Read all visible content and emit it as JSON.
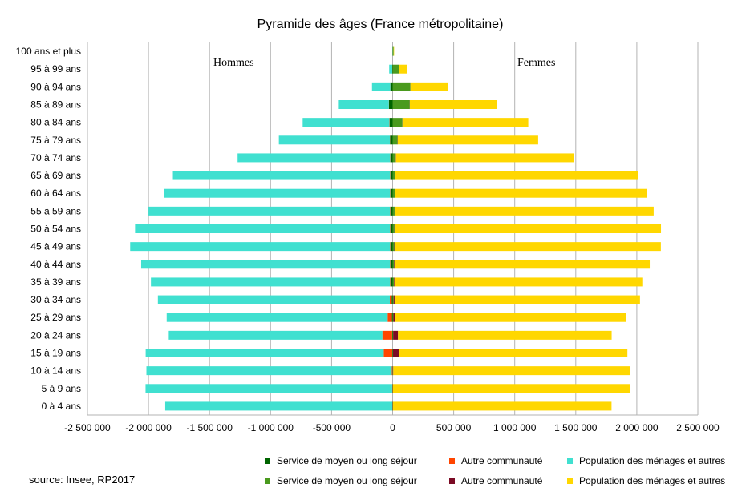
{
  "chart_data": {
    "type": "bar",
    "orientation": "horizontal",
    "title": "Pyramide des âges (France métropolitaine)",
    "source": "source: Insee, RP2017",
    "left_label": "Hommes",
    "right_label": "Femmes",
    "xlim": [
      -2500000,
      2500000
    ],
    "xticks": [
      -2500000,
      -2000000,
      -1500000,
      -1000000,
      -500000,
      0,
      500000,
      1000000,
      1500000,
      2000000,
      2500000
    ],
    "xtick_labels": [
      "-2 500 000",
      "-2 000 000",
      "-1 500 000",
      "-1 000 000",
      "-500 000",
      "0",
      "500 000",
      "1 000 000",
      "1 500 000",
      "2 000 000",
      "2 500 000"
    ],
    "grid": true,
    "categories": [
      "0 à 4 ans",
      "5 à 9 ans",
      "10 à 14 ans",
      "15 à 19 ans",
      "20 à 24 ans",
      "25 à 29 ans",
      "30 à 34 ans",
      "35 à 39 ans",
      "40 à 44 ans",
      "45 à 49 ans",
      "50 à 54 ans",
      "55 à 59 ans",
      "60 à 64 ans",
      "65 à 69 ans",
      "70 à 74 ans",
      "75 à 79 ans",
      "80 à 84 ans",
      "85 à 89 ans",
      "90 à 94 ans",
      "95 à 99 ans",
      "100 ans et plus"
    ],
    "series": [
      {
        "name": "Service de moyen ou long séjour",
        "side": "Hommes",
        "color": "#006400",
        "values": [
          -2000,
          -2000,
          -2000,
          -3000,
          -4000,
          -6000,
          -8000,
          -10000,
          -12000,
          -14000,
          -15000,
          -16000,
          -17000,
          -17000,
          -18000,
          -20000,
          -25000,
          -30000,
          -18000,
          -3000,
          -500
        ]
      },
      {
        "name": "Autre communauté",
        "side": "Hommes",
        "color": "#ff4500",
        "values": [
          -1000,
          -2000,
          -5000,
          -70000,
          -80000,
          -35000,
          -15000,
          -10000,
          -8000,
          -6000,
          -5000,
          -4000,
          -3000,
          -3000,
          -2000,
          -2000,
          -2000,
          -1000,
          -1000,
          -200,
          0
        ]
      },
      {
        "name": "Population des ménages et autres",
        "side": "Hommes",
        "color": "#40e0d0",
        "values": [
          -1860000,
          -2020000,
          -2010000,
          -1950000,
          -1750000,
          -1810000,
          -1900000,
          -1960000,
          -2040000,
          -2130000,
          -2090000,
          -1980000,
          -1850000,
          -1780000,
          -1250000,
          -910000,
          -710000,
          -410000,
          -150000,
          -25000,
          -1000
        ]
      },
      {
        "name": "Service de moyen ou long séjour",
        "side": "Femmes",
        "color": "#4a9a1e",
        "values": [
          2000,
          2000,
          2000,
          3000,
          4000,
          6000,
          8000,
          10000,
          12000,
          14000,
          15000,
          16000,
          18000,
          20000,
          25000,
          40000,
          80000,
          140000,
          145000,
          55000,
          8000
        ]
      },
      {
        "name": "Autre communauté",
        "side": "Femmes",
        "color": "#7b0a24",
        "values": [
          1000,
          1000,
          3000,
          50000,
          40000,
          15000,
          8000,
          5000,
          4000,
          3000,
          3000,
          2000,
          2000,
          2000,
          2000,
          2000,
          1000,
          1000,
          1000,
          0,
          0
        ]
      },
      {
        "name": "Population des ménages et autres",
        "side": "Femmes",
        "color": "#ffd700",
        "values": [
          1790000,
          1940000,
          1940000,
          1870000,
          1750000,
          1890000,
          2010000,
          2030000,
          2090000,
          2180000,
          2180000,
          2120000,
          2060000,
          1990000,
          1460000,
          1150000,
          1030000,
          710000,
          310000,
          60000,
          4000
        ]
      }
    ],
    "legend": {
      "placement": "bottom-right",
      "rows": [
        [
          {
            "label": "Service de moyen ou long séjour",
            "color": "#006400"
          },
          {
            "label": "Autre communauté",
            "color": "#ff4500"
          },
          {
            "label": "Population des ménages et autres",
            "color": "#40e0d0"
          }
        ],
        [
          {
            "label": "Service de moyen ou long séjour",
            "color": "#4a9a1e"
          },
          {
            "label": "Autre communauté",
            "color": "#7b0a24"
          },
          {
            "label": "Population des ménages et autres",
            "color": "#ffd700"
          }
        ]
      ]
    }
  }
}
